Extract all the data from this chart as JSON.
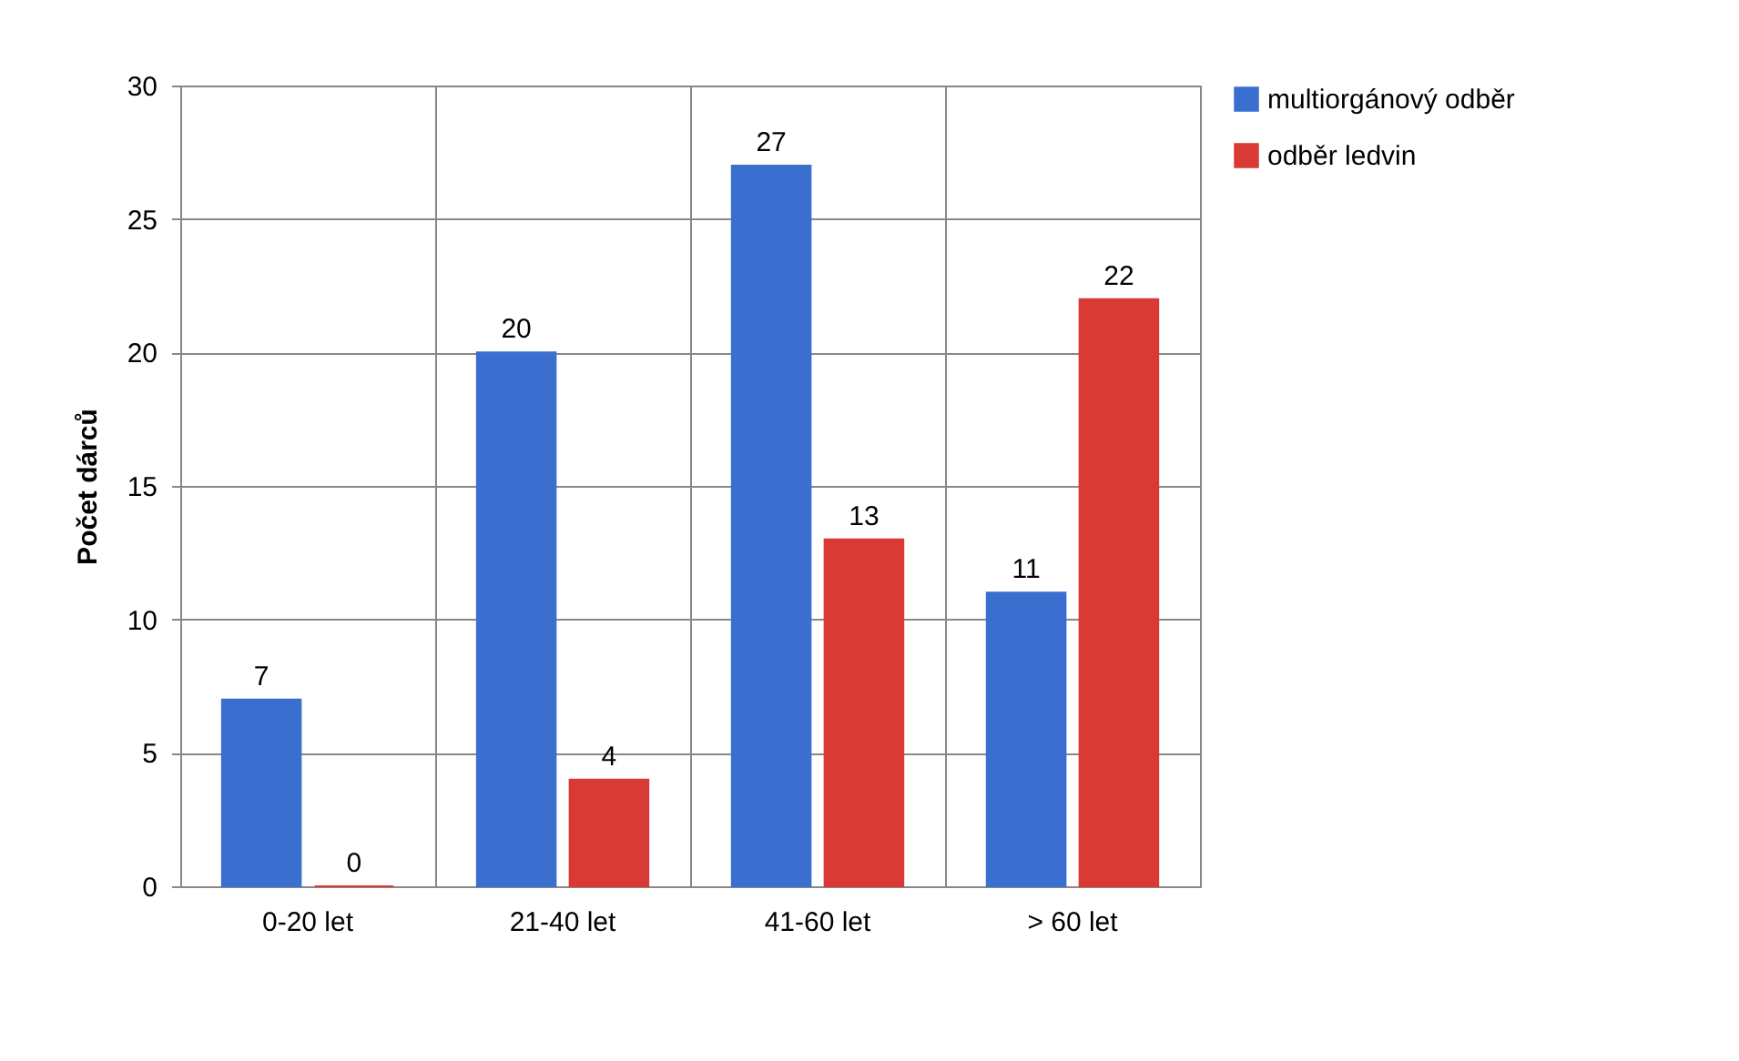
{
  "chart_data": {
    "type": "bar",
    "ylabel": "Počet dárců",
    "categories": [
      "0-20 let",
      "21-40 let",
      "41-60 let",
      "> 60 let"
    ],
    "series": [
      {
        "name": "multiorgánový odběr",
        "color": "#3a6fd0",
        "values": [
          7,
          20,
          27,
          11
        ]
      },
      {
        "name": "odběr ledvin",
        "color": "#d93a35",
        "values": [
          0,
          4,
          13,
          22
        ]
      }
    ],
    "ylim": [
      0,
      30
    ],
    "yticks": [
      0,
      5,
      10,
      15,
      20,
      25,
      30
    ],
    "grid": true,
    "legend": "right",
    "data_labels": true
  }
}
